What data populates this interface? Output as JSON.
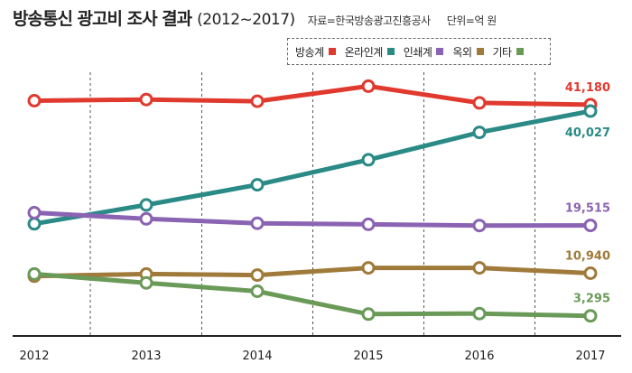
{
  "header": {
    "title": "방송통신 광고비 조사 결과",
    "period": "(2012~2017)",
    "source": "자료=한국방송광고진흥공사",
    "unit": "단위=억 원"
  },
  "chart_data": {
    "type": "line",
    "title": "방송통신 광고비 조사 결과 (2012~2017)",
    "xlabel": "",
    "ylabel": "",
    "unit": "억 원",
    "categories": [
      "2012",
      "2013",
      "2014",
      "2015",
      "2016",
      "2017"
    ],
    "ylim": [
      0,
      47000
    ],
    "grid": "vertical dashed",
    "legend": "top-right",
    "series": [
      {
        "name": "방송계",
        "color": "#e03a2f",
        "values": [
          41900,
          42100,
          41800,
          44500,
          41500,
          41180
        ],
        "last_label": "41,180"
      },
      {
        "name": "온라인계",
        "color": "#2a8a86",
        "values": [
          19800,
          23200,
          26800,
          31300,
          36200,
          40027
        ],
        "last_label": "40,027"
      },
      {
        "name": "인쇄계",
        "color": "#8a63b3",
        "values": [
          21800,
          20700,
          19900,
          19700,
          19500,
          19515
        ],
        "last_label": "19,515"
      },
      {
        "name": "옥외",
        "color": "#a07a3a",
        "values": [
          10400,
          10800,
          10600,
          11900,
          11900,
          10940
        ],
        "last_label": "10,940"
      },
      {
        "name": "기타",
        "color": "#6a9a58",
        "values": [
          10800,
          9200,
          7700,
          3600,
          3700,
          3295
        ],
        "last_label": "3,295"
      }
    ]
  }
}
